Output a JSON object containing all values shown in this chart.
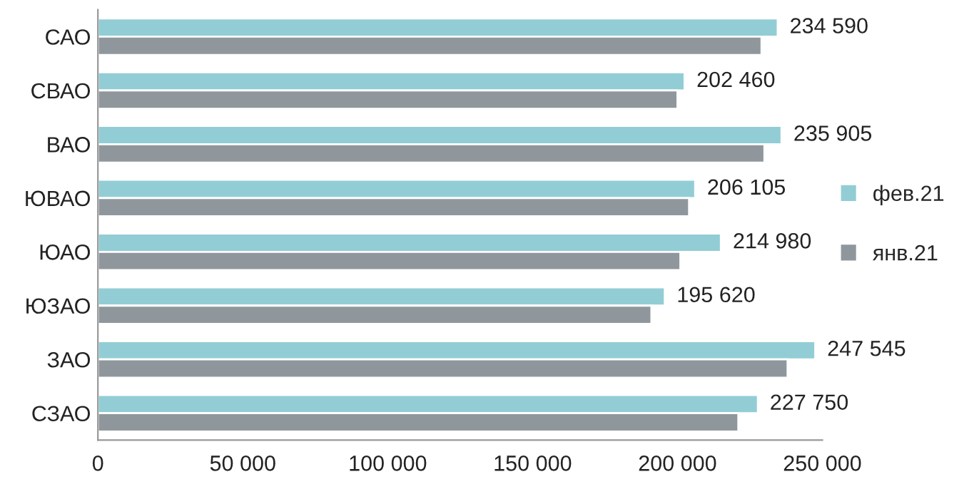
{
  "chart_data": {
    "type": "bar",
    "orientation": "horizontal",
    "categories": [
      "САО",
      "СВАО",
      "ВАО",
      "ЮВАО",
      "ЮАО",
      "ЮЗАО",
      "ЗАО",
      "СЗАО"
    ],
    "series": [
      {
        "name": "фев.21",
        "color": "#92cdd5",
        "values": [
          234590,
          202460,
          235905,
          206105,
          214980,
          195620,
          247545,
          227750
        ],
        "value_labels": [
          "234 590",
          "202 460",
          "235 905",
          "206 105",
          "214 980",
          "195 620",
          "247 545",
          "227 750"
        ]
      },
      {
        "name": "янв.21",
        "color": "#8f979d",
        "values": [
          229000,
          200000,
          230000,
          204000,
          201000,
          191000,
          238000,
          221000
        ]
      }
    ],
    "xlim": [
      0,
      250000
    ],
    "xticks": [
      {
        "value": 0,
        "label": "0"
      },
      {
        "value": 50000,
        "label": "50 000"
      },
      {
        "value": 100000,
        "label": "100 000"
      },
      {
        "value": 150000,
        "label": "150 000"
      },
      {
        "value": 200000,
        "label": "200 000"
      },
      {
        "value": 250000,
        "label": "250 000"
      }
    ],
    "grid": false,
    "legend": "right"
  }
}
